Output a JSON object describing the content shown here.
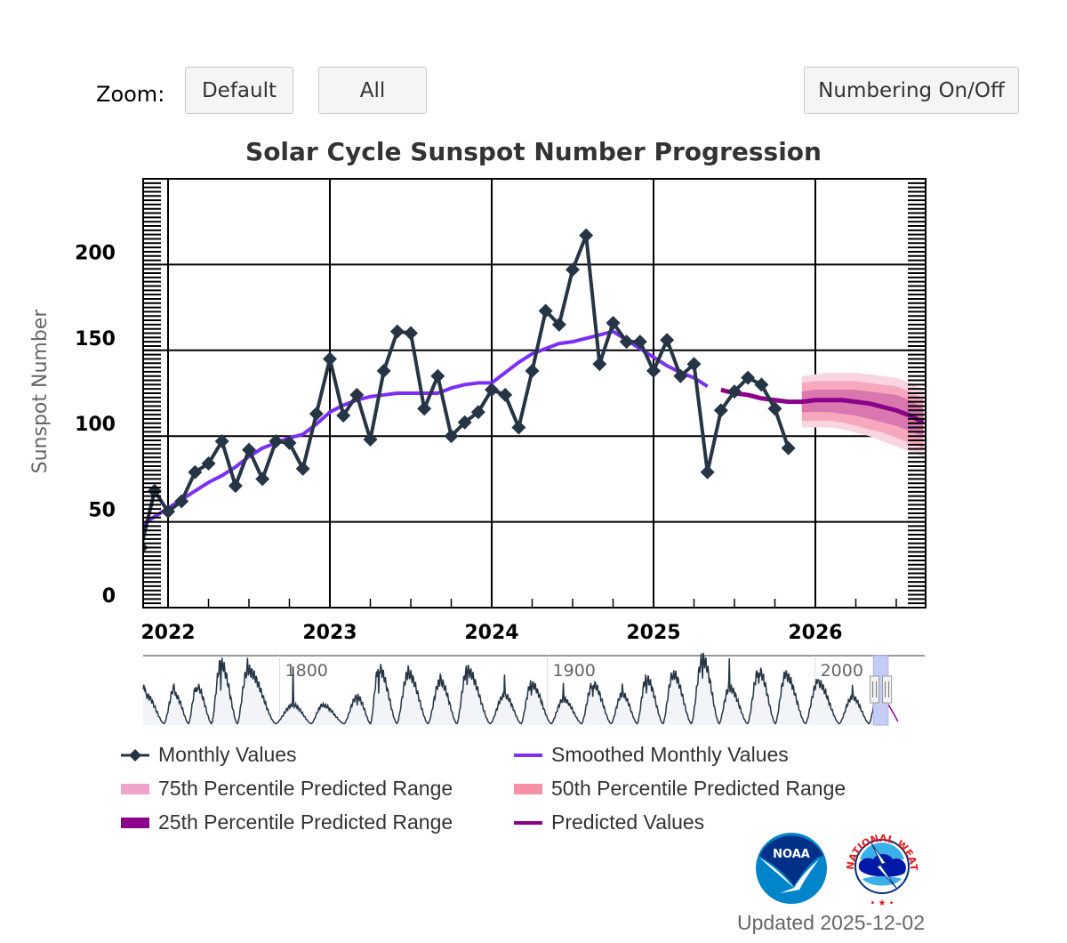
{
  "toolbar": {
    "zoom_label": "Zoom:",
    "default_label": "Default",
    "all_label": "All",
    "numbering_label": "Numbering On/Off"
  },
  "updated_text": "Updated 2025-12-02",
  "logos": {
    "noaa": "NOAA",
    "nws": "NATIONAL WEATHER SERVICE"
  },
  "colors": {
    "monthly": "#263545",
    "smoothed": "#7b2ff7",
    "predicted": "#8b008b",
    "p75": "#f9d4e1",
    "p50": "#f7a7be",
    "p25": "#d878ae",
    "legend_p75": "#f0a3c8",
    "legend_p50": "#f78fa7",
    "legend_p25": "#8b008b"
  },
  "chart_data": {
    "type": "line",
    "title": "Solar Cycle Sunspot Number Progression",
    "ylabel": "Sunspot Number",
    "xlabel": "",
    "ylim": [
      0,
      250
    ],
    "xlim": [
      "2021-11",
      "2026-09"
    ],
    "yticks": [
      "0",
      "50",
      "100",
      "150",
      "200"
    ],
    "xticks": [
      "2022",
      "2023",
      "2024",
      "2025",
      "2026"
    ],
    "grid": true,
    "legend_position": "bottom",
    "legend": [
      "Monthly Values",
      "Smoothed Monthly Values",
      "75th Percentile Predicted Range",
      "50th Percentile Predicted Range",
      "25th Percentile Predicted Range",
      "Predicted Values"
    ],
    "monthly": {
      "name": "Monthly Values",
      "dates": [
        "2021-11",
        "2021-12",
        "2022-01",
        "2022-02",
        "2022-03",
        "2022-04",
        "2022-05",
        "2022-06",
        "2022-07",
        "2022-08",
        "2022-09",
        "2022-10",
        "2022-11",
        "2022-12",
        "2023-01",
        "2023-02",
        "2023-03",
        "2023-04",
        "2023-05",
        "2023-06",
        "2023-07",
        "2023-08",
        "2023-09",
        "2023-10",
        "2023-11",
        "2023-12",
        "2024-01",
        "2024-02",
        "2024-03",
        "2024-04",
        "2024-05",
        "2024-06",
        "2024-07",
        "2024-08",
        "2024-09",
        "2024-10",
        "2024-11",
        "2024-12",
        "2025-01",
        "2025-02",
        "2025-03",
        "2025-04",
        "2025-05",
        "2025-06",
        "2025-07",
        "2025-08",
        "2025-09",
        "2025-10",
        "2025-11"
      ],
      "values": [
        35,
        68,
        56,
        62,
        79,
        84,
        97,
        71,
        92,
        75,
        97,
        96,
        81,
        113,
        145,
        112,
        124,
        98,
        138,
        161,
        160,
        116,
        135,
        100,
        108,
        114,
        127,
        124,
        105,
        138,
        173,
        165,
        197,
        217,
        142,
        166,
        155,
        155,
        138,
        156,
        135,
        142,
        79,
        115,
        126,
        134,
        130,
        116,
        93
      ]
    },
    "smoothed": {
      "name": "Smoothed Monthly Values",
      "dates": [
        "2021-11",
        "2021-12",
        "2022-01",
        "2022-02",
        "2022-03",
        "2022-04",
        "2022-05",
        "2022-06",
        "2022-07",
        "2022-08",
        "2022-09",
        "2022-10",
        "2022-11",
        "2022-12",
        "2023-01",
        "2023-02",
        "2023-03",
        "2023-04",
        "2023-05",
        "2023-06",
        "2023-07",
        "2023-08",
        "2023-09",
        "2023-10",
        "2023-11",
        "2023-12",
        "2024-01",
        "2024-02",
        "2024-03",
        "2024-04",
        "2024-05",
        "2024-06",
        "2024-07",
        "2024-08",
        "2024-09",
        "2024-10",
        "2024-11",
        "2024-12",
        "2025-01",
        "2025-02",
        "2025-03",
        "2025-04",
        "2025-05"
      ],
      "values": [
        48,
        53,
        58,
        63,
        68,
        73,
        77,
        82,
        88,
        93,
        96,
        99,
        101,
        107,
        114,
        118,
        121,
        123,
        124,
        125,
        125,
        125,
        125,
        128,
        130,
        131,
        131,
        137,
        143,
        148,
        151,
        154,
        155,
        157,
        159,
        161,
        156,
        151,
        146,
        141,
        137,
        134,
        129
      ]
    },
    "predicted": {
      "name": "Predicted Values",
      "dates": [
        "2025-06",
        "2025-07",
        "2025-08",
        "2025-09",
        "2025-10",
        "2025-11",
        "2025-12",
        "2026-01",
        "2026-02",
        "2026-03",
        "2026-04",
        "2026-05",
        "2026-06",
        "2026-07",
        "2026-08",
        "2026-09"
      ],
      "values": [
        127,
        125,
        124,
        122,
        121,
        120,
        120,
        121,
        121,
        121,
        120,
        119,
        117,
        115,
        112,
        108
      ]
    },
    "ranges": {
      "dates": [
        "2025-12",
        "2026-01",
        "2026-02",
        "2026-03",
        "2026-04",
        "2026-05",
        "2026-06",
        "2026-07",
        "2026-08",
        "2026-09"
      ],
      "p75": {
        "name": "75th Percentile Predicted Range",
        "low": [
          105,
          105,
          105,
          104,
          102,
          100,
          97,
          94,
          91,
          88
        ],
        "high": [
          135,
          136,
          137,
          137,
          137,
          136,
          135,
          134,
          131,
          127
        ]
      },
      "p50": {
        "name": "50th Percentile Predicted Range",
        "low": [
          109,
          109,
          109,
          108,
          106,
          104,
          102,
          99,
          96,
          93
        ],
        "high": [
          131,
          132,
          132,
          132,
          132,
          131,
          130,
          129,
          126,
          122
        ]
      },
      "p25": {
        "name": "25th Percentile Predicted Range",
        "low": [
          114,
          114,
          114,
          113,
          112,
          110,
          108,
          106,
          103,
          100
        ],
        "high": [
          126,
          127,
          127,
          127,
          127,
          126,
          125,
          124,
          121,
          116
        ]
      }
    },
    "navigator": {
      "xticks": [
        "1800",
        "1900",
        "2000"
      ],
      "xlim": [
        1749,
        2041
      ],
      "cycle_peaks": [
        [
          1761,
          125
        ],
        [
          1769,
          166
        ],
        [
          1778,
          265
        ],
        [
          1788,
          235
        ],
        [
          1805,
          82
        ],
        [
          1816,
          81
        ],
        [
          1829,
          119
        ],
        [
          1837,
          245
        ],
        [
          1848,
          219
        ],
        [
          1860,
          186
        ],
        [
          1870,
          234
        ],
        [
          1884,
          125
        ],
        [
          1894,
          173
        ],
        [
          1906,
          106
        ],
        [
          1917,
          175
        ],
        [
          1928,
          130
        ],
        [
          1937,
          198
        ],
        [
          1947,
          218
        ],
        [
          1958,
          285
        ],
        [
          1968,
          157
        ],
        [
          1979,
          233
        ],
        [
          1989,
          213
        ],
        [
          2001,
          180
        ],
        [
          2014,
          116
        ],
        [
          2024,
          161
        ]
      ],
      "selected_range": [
        "2021-11",
        "2026-09"
      ]
    }
  }
}
